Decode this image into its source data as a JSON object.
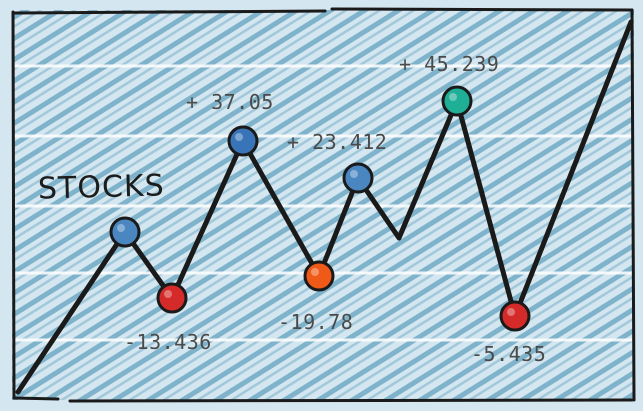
{
  "title": "STOCKS",
  "palette": {
    "background": "#d4e7f0",
    "hatch": "#7fb3cb",
    "line": "#1a1a1a",
    "gridline": "#ffffff"
  },
  "points": [
    {
      "label": "",
      "color": "#4a86c0"
    },
    {
      "label": "-13.436",
      "color": "#d42a2a"
    },
    {
      "label": "+ 37.05",
      "color": "#3a74b8"
    },
    {
      "label": "-19.78",
      "color": "#ef5a18"
    },
    {
      "label": "+ 23.412",
      "color": "#4a86c0"
    },
    {
      "label": "+ 45.239",
      "color": "#1fae96"
    },
    {
      "label": "-5.435",
      "color": "#d42a2a"
    }
  ]
}
